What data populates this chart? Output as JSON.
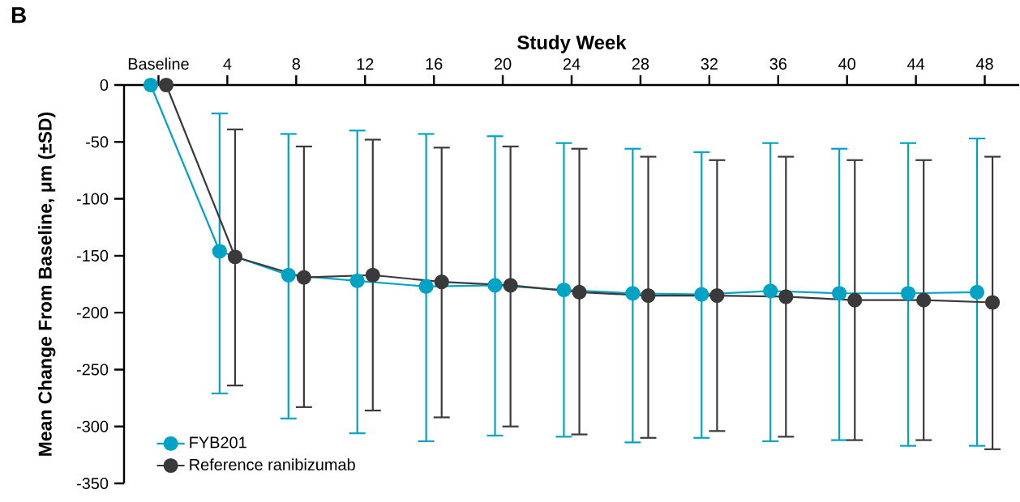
{
  "chart_data": {
    "type": "line",
    "xlabel": "Study Week",
    "ylabel": "Mean Change From Baseline, μm (±SD)",
    "annotations": [
      "B"
    ],
    "xlim": [
      -2,
      50
    ],
    "xticks": [
      {
        "value": 0,
        "label": "Baseline"
      },
      4,
      8,
      12,
      16,
      20,
      24,
      28,
      32,
      36,
      40,
      44,
      48
    ],
    "ylim": [
      -350,
      0
    ],
    "yticks": [
      0,
      -50,
      -100,
      -150,
      -200,
      -250,
      -300,
      -350
    ],
    "legend": "bottom left",
    "marker": "circle",
    "line_style": "solid",
    "series": [
      {
        "name": "FYB201",
        "color": "#00a3c4",
        "x": [
          -0.45,
          3.55,
          7.55,
          11.55,
          15.55,
          19.55,
          23.55,
          27.55,
          31.55,
          35.55,
          39.55,
          43.55,
          47.55
        ],
        "values": [
          0,
          -146,
          -167,
          -172,
          -177,
          -176,
          -180,
          -183,
          -184,
          -181,
          -183,
          -183,
          -182
        ],
        "errors": [
          null,
          [
            -271,
            -25
          ],
          [
            -293,
            -43
          ],
          [
            -306,
            -40
          ],
          [
            -313,
            -43
          ],
          [
            -308,
            -45
          ],
          [
            -309,
            -51
          ],
          [
            -314,
            -56
          ],
          [
            -310,
            -59
          ],
          [
            -313,
            -51
          ],
          [
            -312,
            -56
          ],
          [
            -317,
            -51
          ],
          [
            -317,
            -47
          ]
        ]
      },
      {
        "name": "Reference ranibizumab",
        "color": "#3a3a3c",
        "x": [
          0.45,
          4.45,
          8.45,
          12.45,
          16.45,
          20.45,
          24.45,
          28.45,
          32.45,
          36.45,
          40.45,
          44.45,
          48.45
        ],
        "values": [
          0,
          -151,
          -169,
          -167,
          -173,
          -176,
          -182,
          -185,
          -185,
          -186,
          -189,
          -189,
          -191
        ],
        "errors": [
          null,
          [
            -264,
            -39
          ],
          [
            -283,
            -54
          ],
          [
            -286,
            -48
          ],
          [
            -292,
            -55
          ],
          [
            -300,
            -54
          ],
          [
            -307,
            -56
          ],
          [
            -310,
            -63
          ],
          [
            -304,
            -66
          ],
          [
            -309,
            -63
          ],
          [
            -312,
            -66
          ],
          [
            -312,
            -66
          ],
          [
            -320,
            -63
          ]
        ]
      }
    ]
  }
}
